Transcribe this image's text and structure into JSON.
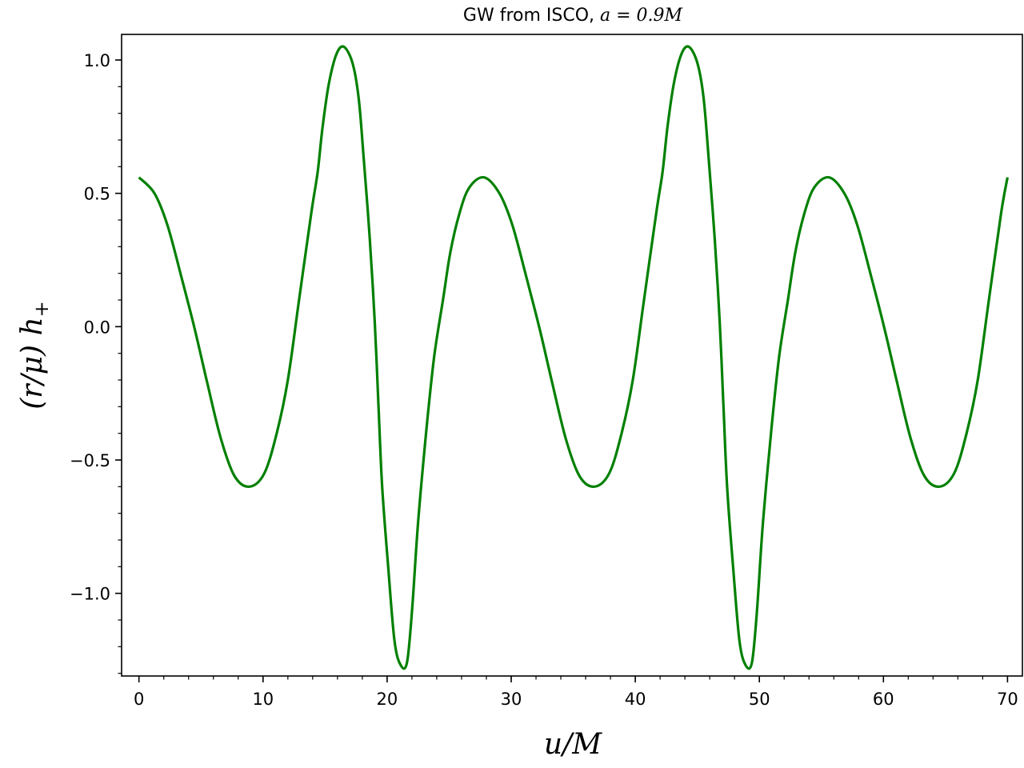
{
  "chart_data": {
    "type": "line",
    "title": "GW from ISCO, a = 0.9M",
    "title_text": "GW from ISCO, ",
    "title_math": "a = 0.9M",
    "xlabel": "u/M",
    "ylabel": "(r/μ) h₊",
    "ylabel_main": "(r/μ) h",
    "ylabel_sub": "+",
    "xlim": [
      -1.4,
      71.2
    ],
    "ylim": [
      -1.31,
      1.096
    ],
    "xticks": [
      0,
      10,
      20,
      30,
      40,
      50,
      60,
      70
    ],
    "xtick_labels": [
      "0",
      "10",
      "20",
      "30",
      "40",
      "50",
      "60",
      "70"
    ],
    "yticks": [
      -1.0,
      -0.5,
      0.0,
      0.5,
      1.0
    ],
    "ytick_labels": [
      "−1.0",
      "−0.5",
      "0.0",
      "0.5",
      "1.0"
    ],
    "x_minor_step": 2,
    "y_minor_step": 0.1,
    "grid": false,
    "series": [
      {
        "color": "#008000",
        "x": [
          0,
          1.25,
          2.3,
          3.4,
          4.5,
          5.5,
          6.6,
          7.7,
          8.9,
          10.1,
          11.1,
          12.0,
          12.9,
          13.9,
          14.4,
          14.8,
          15.3,
          15.9,
          16.5,
          17.2,
          17.7,
          18.1,
          18.6,
          19.0,
          19.3,
          19.6,
          20.1,
          20.6,
          21.1,
          21.6,
          22.0,
          22.5,
          23.2,
          23.8,
          24.5,
          25.1,
          25.8,
          26.6,
          27.8,
          29.05,
          30.1,
          31.2,
          32.3,
          33.3,
          34.4,
          35.5,
          36.7,
          37.9,
          38.9,
          39.8,
          40.7,
          41.7,
          42.2,
          42.6,
          43.1,
          43.7,
          44.3,
          45.0,
          45.5,
          45.9,
          46.4,
          46.8,
          47.1,
          47.4,
          47.9,
          48.4,
          48.9,
          49.4,
          49.8,
          50.3,
          51.0,
          51.6,
          52.3,
          52.9,
          53.6,
          54.4,
          55.6,
          56.85,
          57.9,
          59.0,
          60.1,
          61.1,
          62.2,
          63.3,
          64.5,
          65.7,
          66.7,
          67.6,
          68.5,
          69.5,
          70.0
        ],
        "y": [
          0.56,
          0.5,
          0.38,
          0.19,
          -0.01,
          -0.21,
          -0.42,
          -0.56,
          -0.6,
          -0.55,
          -0.4,
          -0.2,
          0.1,
          0.43,
          0.58,
          0.75,
          0.91,
          1.02,
          1.05,
          0.99,
          0.86,
          0.64,
          0.33,
          0.02,
          -0.29,
          -0.6,
          -0.91,
          -1.18,
          -1.27,
          -1.26,
          -1.07,
          -0.73,
          -0.37,
          -0.11,
          0.1,
          0.28,
          0.42,
          0.52,
          0.56,
          0.5,
          0.38,
          0.19,
          -0.01,
          -0.21,
          -0.42,
          -0.56,
          -0.6,
          -0.55,
          -0.4,
          -0.2,
          0.1,
          0.43,
          0.58,
          0.75,
          0.91,
          1.02,
          1.05,
          0.99,
          0.86,
          0.64,
          0.33,
          0.02,
          -0.29,
          -0.6,
          -0.91,
          -1.18,
          -1.27,
          -1.26,
          -1.07,
          -0.73,
          -0.37,
          -0.11,
          0.1,
          0.28,
          0.42,
          0.52,
          0.56,
          0.5,
          0.38,
          0.19,
          -0.01,
          -0.21,
          -0.42,
          -0.56,
          -0.6,
          -0.55,
          -0.4,
          -0.2,
          0.1,
          0.43,
          0.56
        ]
      }
    ]
  }
}
